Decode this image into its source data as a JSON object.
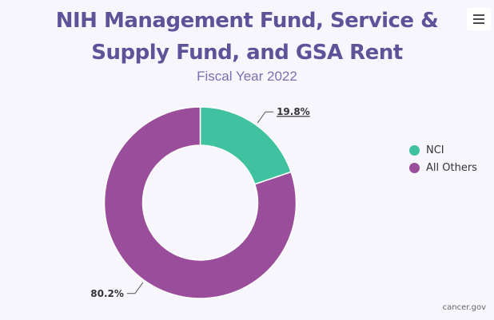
{
  "chart_data": {
    "type": "pie",
    "variant": "donut",
    "title": [
      "NIH Management Fund, Service &",
      "Supply Fund, and GSA Rent"
    ],
    "subtitle": "Fiscal Year 2022",
    "slices": [
      {
        "name": "NCI",
        "value": 19.8,
        "label": "19.8%",
        "color": "#40c1a0"
      },
      {
        "name": "All Others",
        "value": 80.2,
        "label": "80.2%",
        "color": "#9a4d9b"
      }
    ],
    "legend_position": "right",
    "credits": "cancer.gov"
  },
  "menu_icon": "hamburger-menu-icon"
}
